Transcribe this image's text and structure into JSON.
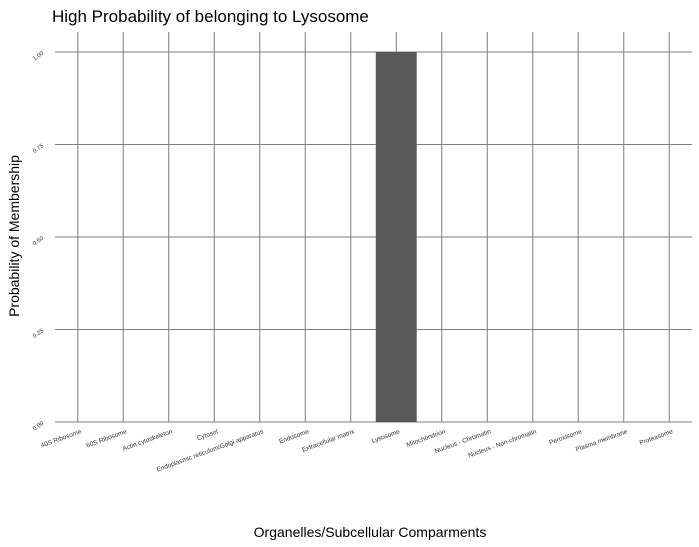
{
  "chart_data": {
    "type": "bar",
    "title": "High Probability of belonging to Lysosome",
    "xlabel": "Organelles/Subcellular Comparments",
    "ylabel": "Probability of Membership",
    "categories": [
      "40S Ribosome",
      "60S Ribosome",
      "Actin cytoskeleton",
      "Cytosol",
      "Endoplasmic reticulum/Golgi apparatus",
      "Endosome",
      "Extracellular matrix",
      "Lysosome",
      "Mitochondrion",
      "Nucleus - Chromatin",
      "Nucleus - Non-chromatin",
      "Peroxisome",
      "Plasma membrane",
      "Proteasome"
    ],
    "values": [
      0,
      0,
      0,
      0,
      0,
      0,
      0,
      1.0,
      0,
      0,
      0,
      0,
      0,
      0
    ],
    "yticks": [
      "0.00",
      "0.25",
      "0.50",
      "0.75",
      "1.00"
    ],
    "ylim": [
      0,
      1
    ],
    "bar_color": "#595959",
    "grid": true,
    "grid_color": "#7f7f7f"
  }
}
